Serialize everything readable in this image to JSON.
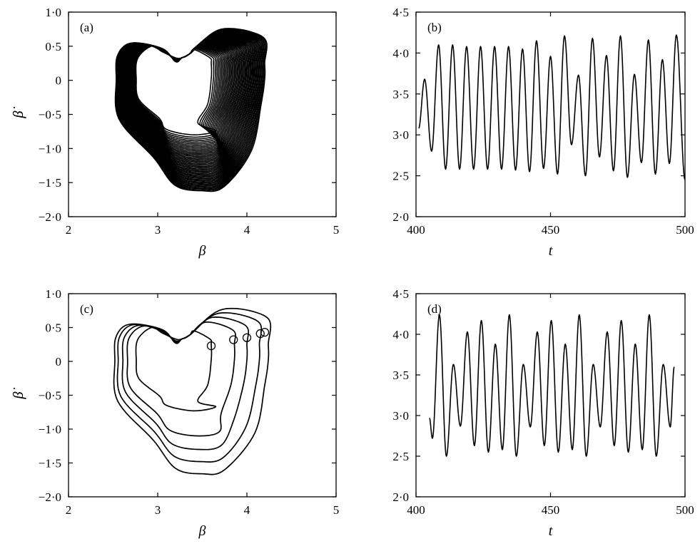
{
  "chart_data": [
    {
      "id": "a",
      "type": "scatter",
      "panel_label": "(a)",
      "xlabel": "β",
      "ylabel": "β̇",
      "xlim": [
        2,
        5
      ],
      "ylim": [
        -2,
        1
      ],
      "xticks": [
        2,
        3,
        4,
        5
      ],
      "xtick_labels": [
        "2",
        "3",
        "4",
        "5"
      ],
      "yticks": [
        1,
        0.5,
        0,
        -0.5,
        -1,
        -1.5,
        -2
      ],
      "ytick_labels": [
        "1·0",
        "0·5",
        "0",
        "−0·5",
        "−1·0",
        "−1·5",
        "−2·0"
      ],
      "grid": false,
      "series": [
        {
          "kind": "chaotic-attractor",
          "orbit_band": {
            "inner": {
              "right_x": 3.6,
              "bottom_y": -0.8,
              "right_top_y": 0.45
            },
            "outer": {
              "right_x": 4.2,
              "bottom_y": -1.62,
              "right_top_y": 0.75
            }
          },
          "orbit_count": 44
        }
      ]
    },
    {
      "id": "b",
      "type": "line",
      "panel_label": "(b)",
      "xlabel": "t",
      "ylabel": "β",
      "xlim": [
        400,
        500
      ],
      "ylim": [
        2,
        4.5
      ],
      "xticks": [
        400,
        450,
        500
      ],
      "xtick_labels": [
        "400",
        "450",
        "500"
      ],
      "yticks": [
        4.5,
        4,
        3.5,
        3,
        2.5,
        2
      ],
      "ytick_labels": [
        "4·5",
        "4·0",
        "3·5",
        "3·0",
        "2·5",
        "2·0"
      ],
      "grid": false,
      "series": [
        {
          "start": [
            401,
            3.08
          ],
          "end": [
            500,
            2.45
          ],
          "peaks": [
            [
              403.2,
              3.68
            ],
            [
              408.4,
              4.1
            ],
            [
              413.6,
              4.1
            ],
            [
              418.8,
              4.08
            ],
            [
              424,
              4.08
            ],
            [
              429.2,
              4.08
            ],
            [
              434.4,
              4.08
            ],
            [
              439.6,
              4.05
            ],
            [
              444.8,
              4.15
            ],
            [
              450,
              3.96
            ],
            [
              455.2,
              4.21
            ],
            [
              460.4,
              3.73
            ],
            [
              465.6,
              4.18
            ],
            [
              470.8,
              3.97
            ],
            [
              476,
              4.21
            ],
            [
              481.2,
              3.74
            ],
            [
              486.4,
              4.16
            ],
            [
              491.6,
              3.92
            ],
            [
              496.8,
              4.22
            ]
          ],
          "troughs": [
            [
              405.8,
              2.8
            ],
            [
              411,
              2.58
            ],
            [
              416.2,
              2.58
            ],
            [
              421.4,
              2.58
            ],
            [
              426.6,
              2.58
            ],
            [
              431.8,
              2.58
            ],
            [
              437,
              2.57
            ],
            [
              442.2,
              2.55
            ],
            [
              447.4,
              2.59
            ],
            [
              452.6,
              2.52
            ],
            [
              457.8,
              2.88
            ],
            [
              463,
              2.5
            ],
            [
              468.2,
              2.73
            ],
            [
              473.4,
              2.56
            ],
            [
              478.6,
              2.48
            ],
            [
              483.8,
              2.66
            ],
            [
              489,
              2.52
            ],
            [
              494.2,
              2.65
            ]
          ]
        }
      ]
    },
    {
      "id": "c",
      "type": "line",
      "panel_label": "(c)",
      "xlabel": "β",
      "ylabel": "β̇",
      "xlim": [
        2,
        5
      ],
      "ylim": [
        -2,
        1
      ],
      "xticks": [
        2,
        3,
        4,
        5
      ],
      "xtick_labels": [
        "2",
        "3",
        "4",
        "5"
      ],
      "yticks": [
        1,
        0.5,
        0,
        -0.5,
        -1,
        -1.5,
        -2
      ],
      "ytick_labels": [
        "1·0",
        "0·5",
        "0",
        "−0·5",
        "−1·0",
        "−1·5",
        "−2·0"
      ],
      "grid": false,
      "series": [
        {
          "orbit": 1,
          "right_x": 3.6,
          "bottom_y": -0.73,
          "right_top_y": 0.45
        },
        {
          "orbit": 2,
          "right_x": 3.86,
          "bottom_y": -1.1,
          "right_top_y": 0.58
        },
        {
          "orbit": 3,
          "right_x": 4.0,
          "bottom_y": -1.3,
          "right_top_y": 0.65
        },
        {
          "orbit": 4,
          "right_x": 4.14,
          "bottom_y": -1.48,
          "right_top_y": 0.71
        },
        {
          "orbit": 5,
          "right_x": 4.24,
          "bottom_y": -1.66,
          "right_top_y": 0.77
        }
      ],
      "markers": [
        {
          "shape": "circle",
          "x": 3.6,
          "y": 0.23
        },
        {
          "shape": "circle",
          "x": 3.85,
          "y": 0.32
        },
        {
          "shape": "circle",
          "x": 4.0,
          "y": 0.35
        },
        {
          "shape": "circle",
          "x": 4.15,
          "y": 0.41
        },
        {
          "shape": "circle",
          "x": 4.2,
          "y": 0.43
        }
      ]
    },
    {
      "id": "d",
      "type": "line",
      "panel_label": "(d)",
      "xlabel": "t",
      "ylabel": "β",
      "xlim": [
        400,
        500
      ],
      "ylim": [
        2,
        4.5
      ],
      "xticks": [
        400,
        450,
        500
      ],
      "xtick_labels": [
        "400",
        "450",
        "500"
      ],
      "yticks": [
        4.5,
        4,
        3.5,
        3,
        2.5,
        2
      ],
      "ytick_labels": [
        "4·5",
        "4·0",
        "3·5",
        "3·0",
        "2·5",
        "2·0"
      ],
      "grid": false,
      "series": [
        {
          "start": [
            405,
            2.97
          ],
          "end": [
            496,
            3.6
          ],
          "peaks": [
            [
              408.7,
              4.24
            ],
            [
              413.9,
              3.63
            ],
            [
              419.1,
              4.03
            ],
            [
              424.3,
              4.17
            ],
            [
              429.5,
              3.88
            ],
            [
              434.7,
              4.24
            ],
            [
              439.9,
              3.63
            ],
            [
              445.1,
              4.03
            ],
            [
              450.3,
              4.17
            ],
            [
              455.5,
              3.88
            ],
            [
              460.7,
              4.24
            ],
            [
              465.9,
              3.63
            ],
            [
              471.1,
              4.03
            ],
            [
              476.3,
              4.17
            ],
            [
              481.5,
              3.88
            ],
            [
              486.7,
              4.24
            ],
            [
              491.9,
              3.63
            ]
          ],
          "troughs": [
            [
              406.1,
              2.72
            ],
            [
              411.3,
              2.5
            ],
            [
              416.5,
              2.87
            ],
            [
              421.7,
              2.63
            ],
            [
              426.9,
              2.55
            ],
            [
              432.1,
              2.58
            ],
            [
              437.3,
              2.5
            ],
            [
              442.5,
              2.86
            ],
            [
              447.7,
              2.63
            ],
            [
              452.9,
              2.55
            ],
            [
              458.1,
              2.58
            ],
            [
              463.3,
              2.5
            ],
            [
              468.5,
              2.86
            ],
            [
              473.7,
              2.63
            ],
            [
              478.9,
              2.55
            ],
            [
              484.1,
              2.58
            ],
            [
              489.3,
              2.5
            ],
            [
              494.5,
              2.86
            ]
          ]
        }
      ]
    }
  ]
}
